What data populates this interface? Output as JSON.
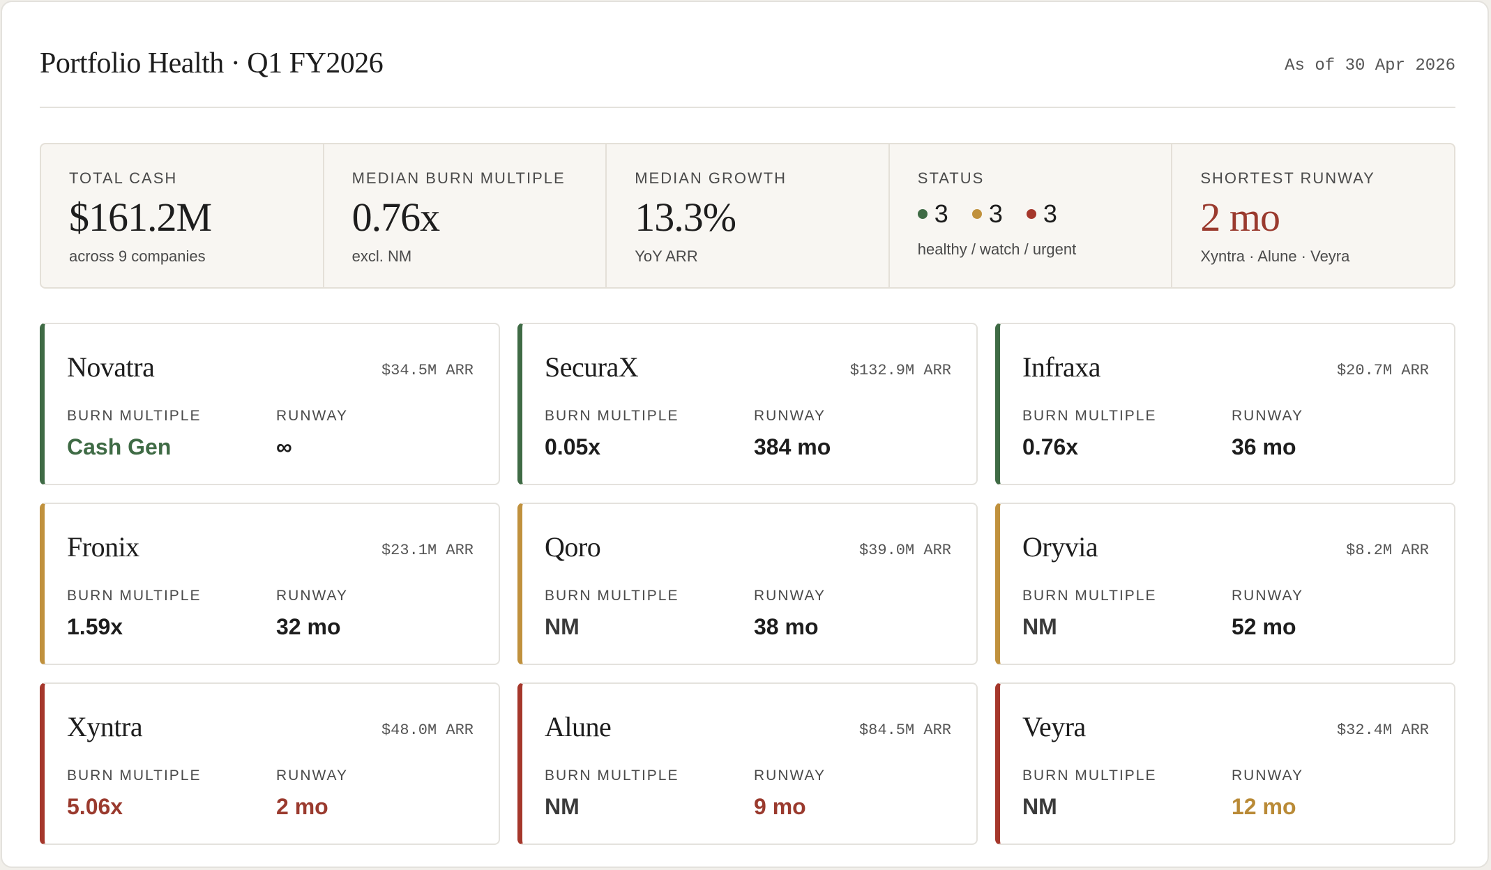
{
  "header": {
    "title": "Portfolio Health · Q1 FY2026",
    "as_of": "As of 30 Apr 2026"
  },
  "summary": {
    "total_cash": {
      "label": "TOTAL CASH",
      "value": "$161.2M",
      "sub": "across 9 companies"
    },
    "median_burn": {
      "label": "MEDIAN BURN MULTIPLE",
      "value": "0.76x",
      "sub": "excl. NM"
    },
    "median_growth": {
      "label": "MEDIAN GROWTH",
      "value": "13.3%",
      "sub": "YoY ARR"
    },
    "status": {
      "label": "STATUS",
      "healthy": "3",
      "watch": "3",
      "urgent": "3",
      "sub": "healthy / watch / urgent"
    },
    "shortest_runway": {
      "label": "SHORTEST RUNWAY",
      "value": "2 mo",
      "sub": "Xyntra · Alune · Veyra"
    }
  },
  "labels": {
    "burn": "BURN MULTIPLE",
    "runway": "RUNWAY"
  },
  "colors": {
    "healthy": "#3f6b45",
    "watch": "#c0913d",
    "urgent": "#a5372b"
  },
  "companies": [
    {
      "name": "Novatra",
      "arr": "$34.5M ARR",
      "burn": "Cash Gen",
      "runway": "∞",
      "status": "healthy"
    },
    {
      "name": "SecuraX",
      "arr": "$132.9M ARR",
      "burn": "0.05x",
      "runway": "384 mo",
      "status": "healthy"
    },
    {
      "name": "Infraxa",
      "arr": "$20.7M ARR",
      "burn": "0.76x",
      "runway": "36 mo",
      "status": "healthy"
    },
    {
      "name": "Fronix",
      "arr": "$23.1M ARR",
      "burn": "1.59x",
      "runway": "32 mo",
      "status": "watch"
    },
    {
      "name": "Qoro",
      "arr": "$39.0M ARR",
      "burn": "NM",
      "runway": "38 mo",
      "status": "watch"
    },
    {
      "name": "Oryvia",
      "arr": "$8.2M ARR",
      "burn": "NM",
      "runway": "52 mo",
      "status": "watch"
    },
    {
      "name": "Xyntra",
      "arr": "$48.0M ARR",
      "burn": "5.06x",
      "runway": "2 mo",
      "status": "urgent"
    },
    {
      "name": "Alune",
      "arr": "$84.5M ARR",
      "burn": "NM",
      "runway": "9 mo",
      "status": "urgent"
    },
    {
      "name": "Veyra",
      "arr": "$32.4M ARR",
      "burn": "NM",
      "runway": "12 mo",
      "status": "urgent"
    }
  ]
}
